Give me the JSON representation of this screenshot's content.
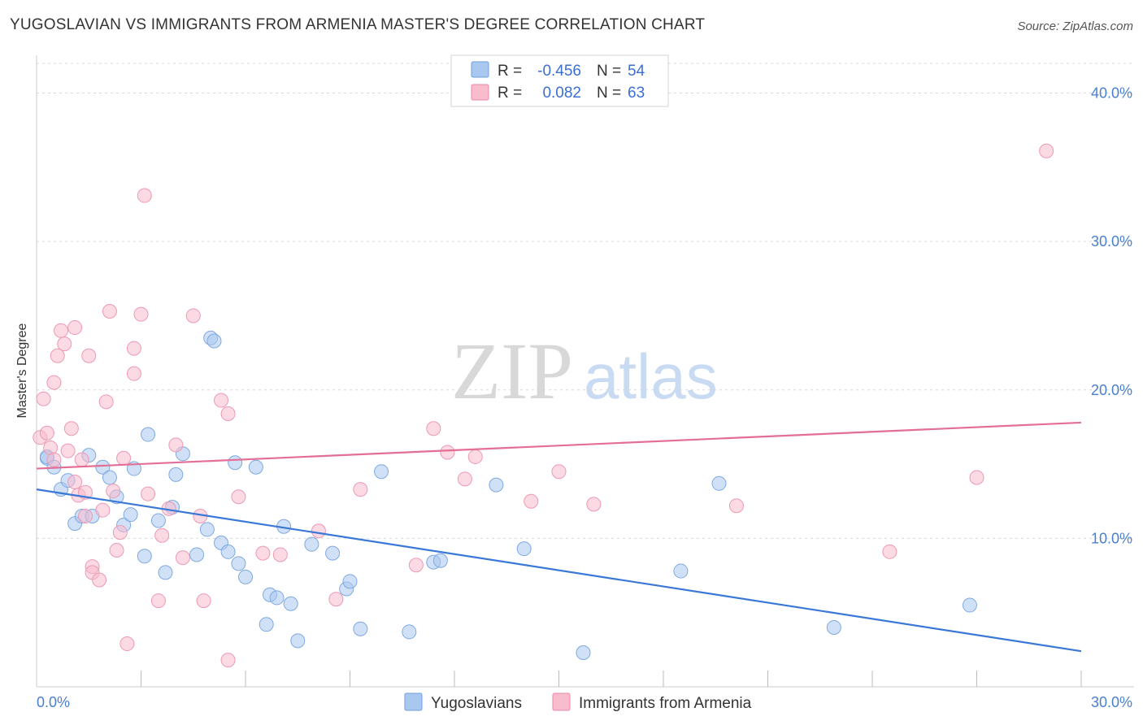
{
  "header": {
    "title": "YUGOSLAVIAN VS IMMIGRANTS FROM ARMENIA MASTER'S DEGREE CORRELATION CHART",
    "source": "Source: ZipAtlas.com"
  },
  "watermark": {
    "zip": "ZIP",
    "atlas": "atlas"
  },
  "legend_box": {
    "rows": [
      {
        "r_label": "R =",
        "r_value": "-0.456",
        "n_label": "N =",
        "n_value": "54",
        "color": "#a9c8f0"
      },
      {
        "r_label": "R =",
        "r_value": "0.082",
        "n_label": "N =",
        "n_value": "63",
        "color": "#f8bccd"
      }
    ]
  },
  "bottom_legend": {
    "items": [
      {
        "label": "Yugoslavians",
        "color": "#a9c8f0"
      },
      {
        "label": "Immigrants from Armenia",
        "color": "#f8bccd"
      }
    ]
  },
  "chart_data": {
    "type": "scatter",
    "title": "YUGOSLAVIAN VS IMMIGRANTS FROM ARMENIA MASTER'S DEGREE CORRELATION CHART",
    "xlabel": "",
    "ylabel": "Master's Degree",
    "xlim": [
      0,
      30
    ],
    "ylim": [
      0,
      42
    ],
    "x_tick_labels": [
      "0.0%",
      "30.0%"
    ],
    "y_ticks": [
      10,
      20,
      30,
      40
    ],
    "y_tick_labels": [
      "10.0%",
      "20.0%",
      "30.0%",
      "40.0%"
    ],
    "grid": true,
    "legend_position": "top-center",
    "colors": {
      "blue_point": "#a9c8f0",
      "blue_line": "#3a78d8",
      "pink_point": "#f8bccd",
      "pink_line": "#e36e96",
      "tick_text": "#4a7fd0"
    },
    "series": [
      {
        "name": "Yugoslavians",
        "trend": {
          "x": [
            0,
            30
          ],
          "y": [
            13.3,
            2.4
          ]
        },
        "points": [
          [
            0.3,
            15.4
          ],
          [
            0.3,
            15.5
          ],
          [
            0.5,
            14.8
          ],
          [
            0.7,
            13.3
          ],
          [
            0.9,
            13.9
          ],
          [
            1.1,
            11.0
          ],
          [
            1.3,
            11.5
          ],
          [
            1.5,
            15.6
          ],
          [
            1.6,
            11.5
          ],
          [
            1.9,
            14.8
          ],
          [
            2.1,
            14.1
          ],
          [
            2.3,
            12.8
          ],
          [
            2.5,
            10.9
          ],
          [
            2.7,
            11.6
          ],
          [
            2.8,
            14.7
          ],
          [
            3.1,
            8.8
          ],
          [
            3.2,
            17.0
          ],
          [
            3.5,
            11.2
          ],
          [
            3.7,
            7.7
          ],
          [
            3.9,
            12.1
          ],
          [
            4.0,
            14.3
          ],
          [
            4.2,
            15.7
          ],
          [
            4.6,
            8.9
          ],
          [
            4.9,
            10.6
          ],
          [
            5.0,
            23.5
          ],
          [
            5.1,
            23.3
          ],
          [
            5.3,
            9.7
          ],
          [
            5.5,
            9.1
          ],
          [
            5.7,
            15.1
          ],
          [
            5.8,
            8.3
          ],
          [
            6.0,
            7.4
          ],
          [
            6.3,
            14.8
          ],
          [
            6.6,
            4.2
          ],
          [
            6.7,
            6.2
          ],
          [
            6.9,
            6.0
          ],
          [
            7.1,
            10.8
          ],
          [
            7.3,
            5.6
          ],
          [
            7.5,
            3.1
          ],
          [
            7.9,
            9.6
          ],
          [
            8.5,
            9.0
          ],
          [
            8.9,
            6.6
          ],
          [
            9.0,
            7.1
          ],
          [
            9.3,
            3.9
          ],
          [
            9.9,
            14.5
          ],
          [
            10.7,
            3.7
          ],
          [
            11.4,
            8.4
          ],
          [
            11.6,
            8.5
          ],
          [
            13.2,
            13.6
          ],
          [
            14.0,
            9.3
          ],
          [
            15.7,
            2.3
          ],
          [
            18.5,
            7.8
          ],
          [
            19.6,
            13.7
          ],
          [
            22.9,
            4.0
          ],
          [
            26.8,
            5.5
          ]
        ]
      },
      {
        "name": "Immigrants from Armenia",
        "trend": {
          "x": [
            0,
            30
          ],
          "y": [
            14.7,
            17.8
          ]
        },
        "points": [
          [
            0.1,
            16.8
          ],
          [
            0.2,
            19.4
          ],
          [
            0.3,
            17.1
          ],
          [
            0.4,
            16.1
          ],
          [
            0.5,
            15.3
          ],
          [
            0.5,
            20.5
          ],
          [
            0.6,
            22.3
          ],
          [
            0.7,
            24.0
          ],
          [
            0.8,
            23.1
          ],
          [
            0.9,
            15.9
          ],
          [
            1.0,
            17.4
          ],
          [
            1.1,
            24.2
          ],
          [
            1.1,
            13.8
          ],
          [
            1.2,
            12.9
          ],
          [
            1.3,
            15.3
          ],
          [
            1.4,
            13.1
          ],
          [
            1.4,
            11.5
          ],
          [
            1.5,
            22.3
          ],
          [
            1.6,
            8.1
          ],
          [
            1.6,
            7.7
          ],
          [
            1.8,
            7.2
          ],
          [
            1.9,
            11.9
          ],
          [
            2.0,
            19.2
          ],
          [
            2.1,
            25.3
          ],
          [
            2.2,
            13.2
          ],
          [
            2.3,
            9.2
          ],
          [
            2.4,
            10.4
          ],
          [
            2.5,
            15.4
          ],
          [
            2.6,
            2.9
          ],
          [
            2.8,
            22.8
          ],
          [
            2.8,
            21.1
          ],
          [
            3.0,
            25.1
          ],
          [
            3.1,
            33.1
          ],
          [
            3.2,
            13.0
          ],
          [
            3.5,
            5.8
          ],
          [
            3.6,
            10.2
          ],
          [
            3.8,
            12.0
          ],
          [
            4.0,
            16.3
          ],
          [
            4.2,
            8.7
          ],
          [
            4.5,
            25.0
          ],
          [
            4.7,
            11.5
          ],
          [
            4.8,
            5.8
          ],
          [
            5.3,
            19.3
          ],
          [
            5.5,
            18.4
          ],
          [
            5.5,
            1.8
          ],
          [
            5.8,
            12.8
          ],
          [
            6.5,
            9.0
          ],
          [
            7.0,
            8.9
          ],
          [
            8.1,
            10.5
          ],
          [
            8.6,
            5.9
          ],
          [
            9.3,
            13.3
          ],
          [
            10.9,
            8.2
          ],
          [
            11.4,
            17.4
          ],
          [
            11.8,
            15.8
          ],
          [
            12.3,
            14.0
          ],
          [
            12.6,
            15.5
          ],
          [
            14.2,
            12.5
          ],
          [
            15.0,
            14.5
          ],
          [
            16.0,
            12.3
          ],
          [
            20.1,
            12.2
          ],
          [
            24.5,
            9.1
          ],
          [
            27.0,
            14.1
          ],
          [
            29.0,
            36.1
          ]
        ]
      }
    ]
  }
}
